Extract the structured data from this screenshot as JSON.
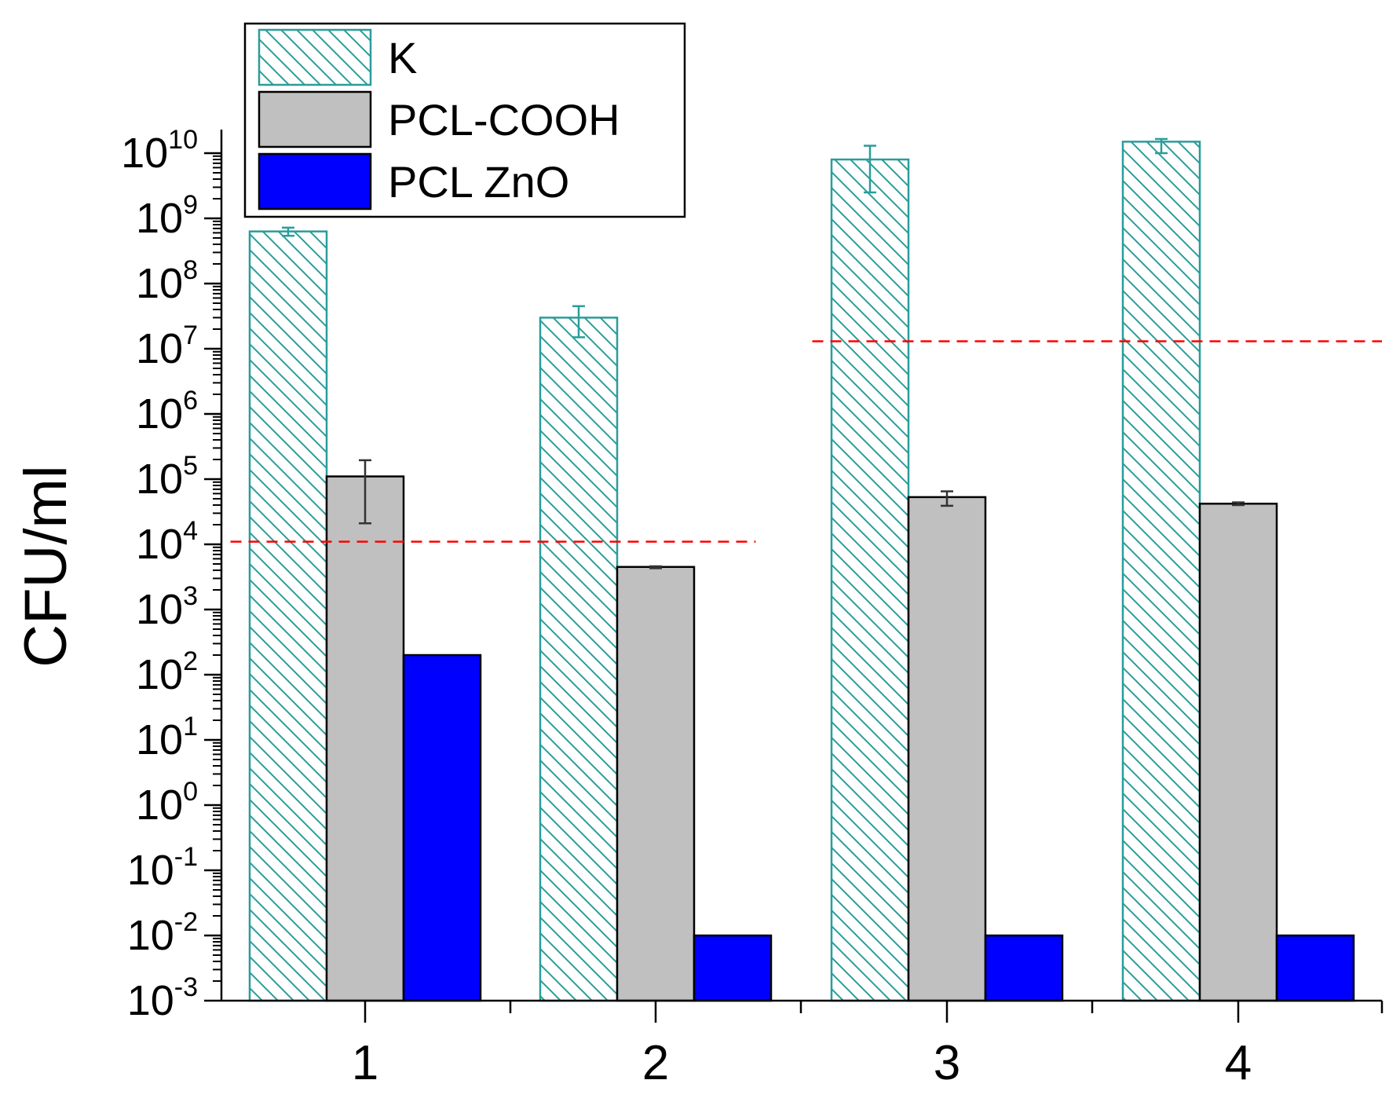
{
  "chart_data": {
    "type": "bar",
    "title": "",
    "xlabel": "",
    "ylabel": "CFU/ml",
    "y_scale": "log",
    "ylim": [
      0.001,
      20000000000
    ],
    "y_tick_base": "10",
    "y_tick_exponents": [
      "-3",
      "-2",
      "-1",
      "0",
      "1",
      "2",
      "3",
      "4",
      "5",
      "6",
      "7",
      "8",
      "9",
      "10"
    ],
    "categories": [
      "1",
      "2",
      "3",
      "4"
    ],
    "series": [
      {
        "name": "K",
        "fill": "hatch",
        "color": "#2a9d9a",
        "values": [
          630000000,
          30000000,
          8000000000,
          15000000000
        ],
        "err_low": [
          540000000,
          15000000,
          2500000000,
          10000000000
        ],
        "err_high": [
          720000000,
          45000000,
          13000000000,
          16500000000
        ]
      },
      {
        "name": "PCL-COOH",
        "fill": "solid",
        "color": "#c0c0c0",
        "values": [
          110000,
          4500,
          53000,
          42000
        ],
        "err_low": [
          21000,
          4300,
          39000,
          40000
        ],
        "err_high": [
          195000,
          4600,
          65000,
          44000
        ]
      },
      {
        "name": "PCL ZnO",
        "fill": "solid",
        "color": "#0000ff",
        "values": [
          200,
          0.01,
          0.01,
          0.01
        ]
      }
    ],
    "threshold_lines": [
      {
        "value": 11000,
        "from_category": "1",
        "to_category": "2",
        "color": "#ff0000",
        "style": "dashed"
      },
      {
        "value": 13000000,
        "from_category": "3",
        "to_category": "4",
        "color": "#ff0000",
        "style": "dashed"
      }
    ],
    "legend": {
      "position": "top-left",
      "entries": [
        "K",
        "PCL-COOH",
        "PCL ZnO"
      ]
    },
    "grid": false
  }
}
